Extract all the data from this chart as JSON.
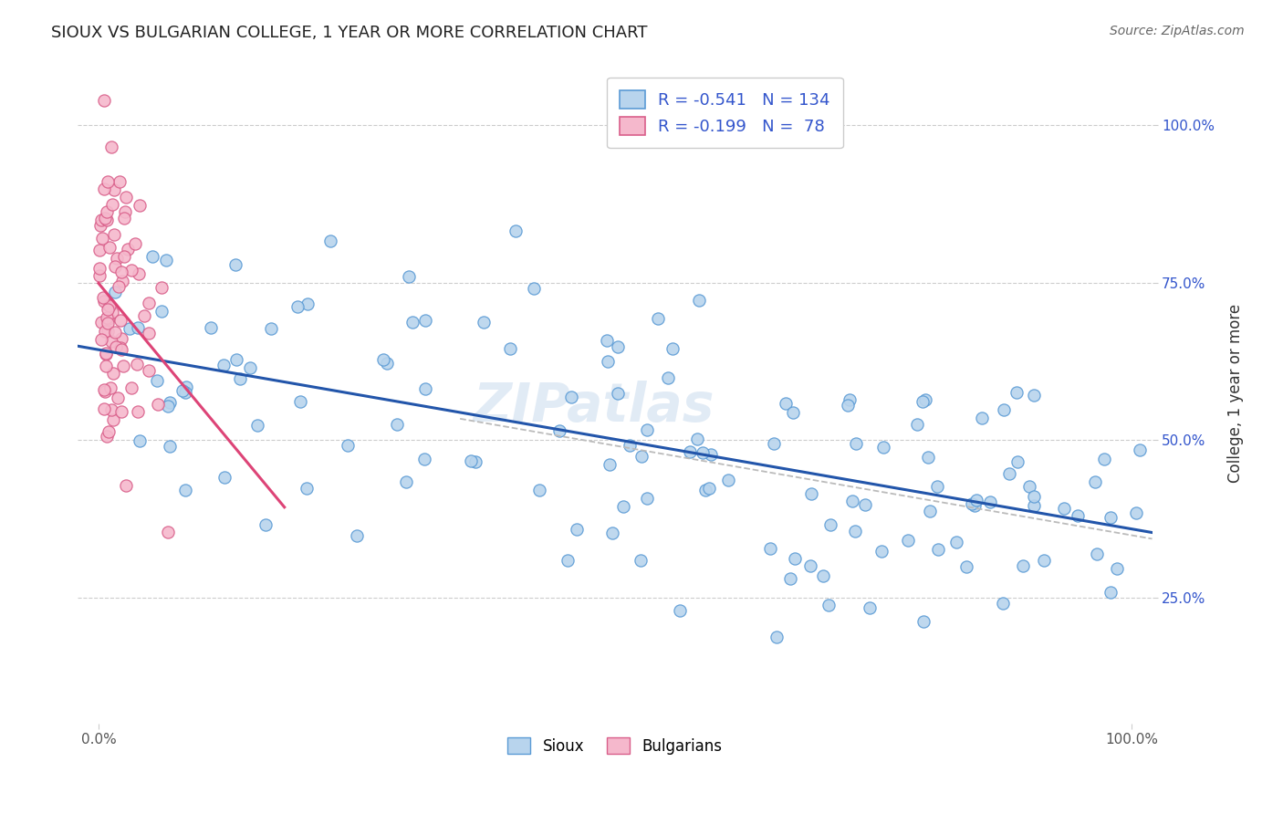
{
  "title": "SIOUX VS BULGARIAN COLLEGE, 1 YEAR OR MORE CORRELATION CHART",
  "source": "Source: ZipAtlas.com",
  "ylabel": "College, 1 year or more",
  "xlim": [
    -0.02,
    1.02
  ],
  "ylim": [
    0.05,
    1.1
  ],
  "xticks": [
    0.0,
    1.0
  ],
  "xtick_labels": [
    "0.0%",
    "100.0%"
  ],
  "yticks": [
    0.25,
    0.5,
    0.75,
    1.0
  ],
  "ytick_labels": [
    "25.0%",
    "50.0%",
    "75.0%",
    "100.0%"
  ],
  "sioux_R": -0.541,
  "sioux_N": 134,
  "bulg_R": -0.199,
  "bulg_N": 78,
  "sioux_fill": "#b8d4ed",
  "bulg_fill": "#f5b8cc",
  "sioux_edge": "#5b9bd5",
  "bulg_edge": "#d95f8a",
  "sioux_line": "#2255aa",
  "bulg_line": "#dd4477",
  "dash_line": "#bbbbbb",
  "grid_color": "#cccccc",
  "background_color": "#ffffff",
  "watermark": "ZIPatlas",
  "title_fontsize": 13,
  "legend_color": "#3355cc"
}
